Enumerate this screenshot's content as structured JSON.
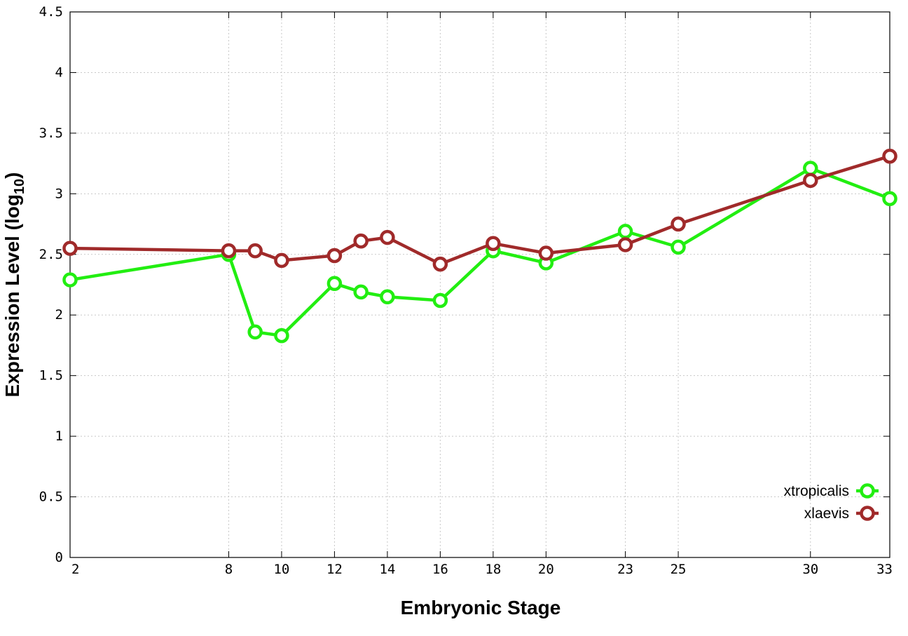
{
  "chart_data": {
    "type": "line",
    "xlabel": "Embryonic Stage",
    "ylabel_main": "Expression Level (log",
    "ylabel_sub": "10",
    "ylabel_close": ")",
    "x_ticks": [
      2,
      8,
      10,
      12,
      14,
      16,
      18,
      20,
      23,
      25,
      30,
      33
    ],
    "y_ticks": [
      0,
      0.5,
      1,
      1.5,
      2,
      2.5,
      3,
      3.5,
      4,
      4.5
    ],
    "y_tick_labels": [
      "0",
      "0.5",
      "1",
      "1.5",
      "2",
      "2.5",
      "3",
      "3.5",
      "4",
      "4.5"
    ],
    "ylim": [
      0,
      4.5
    ],
    "grid": true,
    "legend_position": "bottom-right",
    "x": [
      2,
      8,
      9,
      10,
      12,
      13,
      14,
      16,
      18,
      20,
      23,
      25,
      30,
      33
    ],
    "series": [
      {
        "name": "xtropicalis",
        "color": "#22ee11",
        "values": [
          2.29,
          2.5,
          1.86,
          1.83,
          2.26,
          2.19,
          2.15,
          2.12,
          2.53,
          2.43,
          2.69,
          2.56,
          3.21,
          2.96
        ]
      },
      {
        "name": "xlaevis",
        "color": "#a02a2a",
        "values": [
          2.55,
          2.53,
          2.53,
          2.45,
          2.49,
          2.61,
          2.64,
          2.42,
          2.59,
          2.51,
          2.58,
          2.75,
          3.11,
          3.31
        ]
      }
    ]
  }
}
